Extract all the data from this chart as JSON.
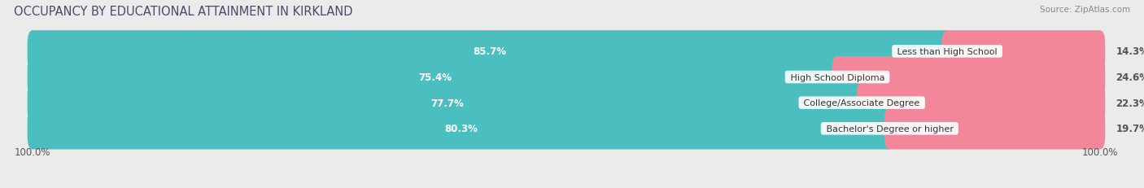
{
  "title": "OCCUPANCY BY EDUCATIONAL ATTAINMENT IN KIRKLAND",
  "source": "Source: ZipAtlas.com",
  "categories": [
    "Less than High School",
    "High School Diploma",
    "College/Associate Degree",
    "Bachelor's Degree or higher"
  ],
  "owner_values": [
    85.7,
    75.4,
    77.7,
    80.3
  ],
  "renter_values": [
    14.3,
    24.6,
    22.3,
    19.7
  ],
  "owner_color": "#4BBFBF",
  "renter_color": "#F4869A",
  "background_color": "#EBEBEB",
  "bar_background": "#DCDCE4",
  "title_fontsize": 10.5,
  "label_fontsize": 8.5,
  "axis_label_fontsize": 8.5,
  "legend_fontsize": 9
}
